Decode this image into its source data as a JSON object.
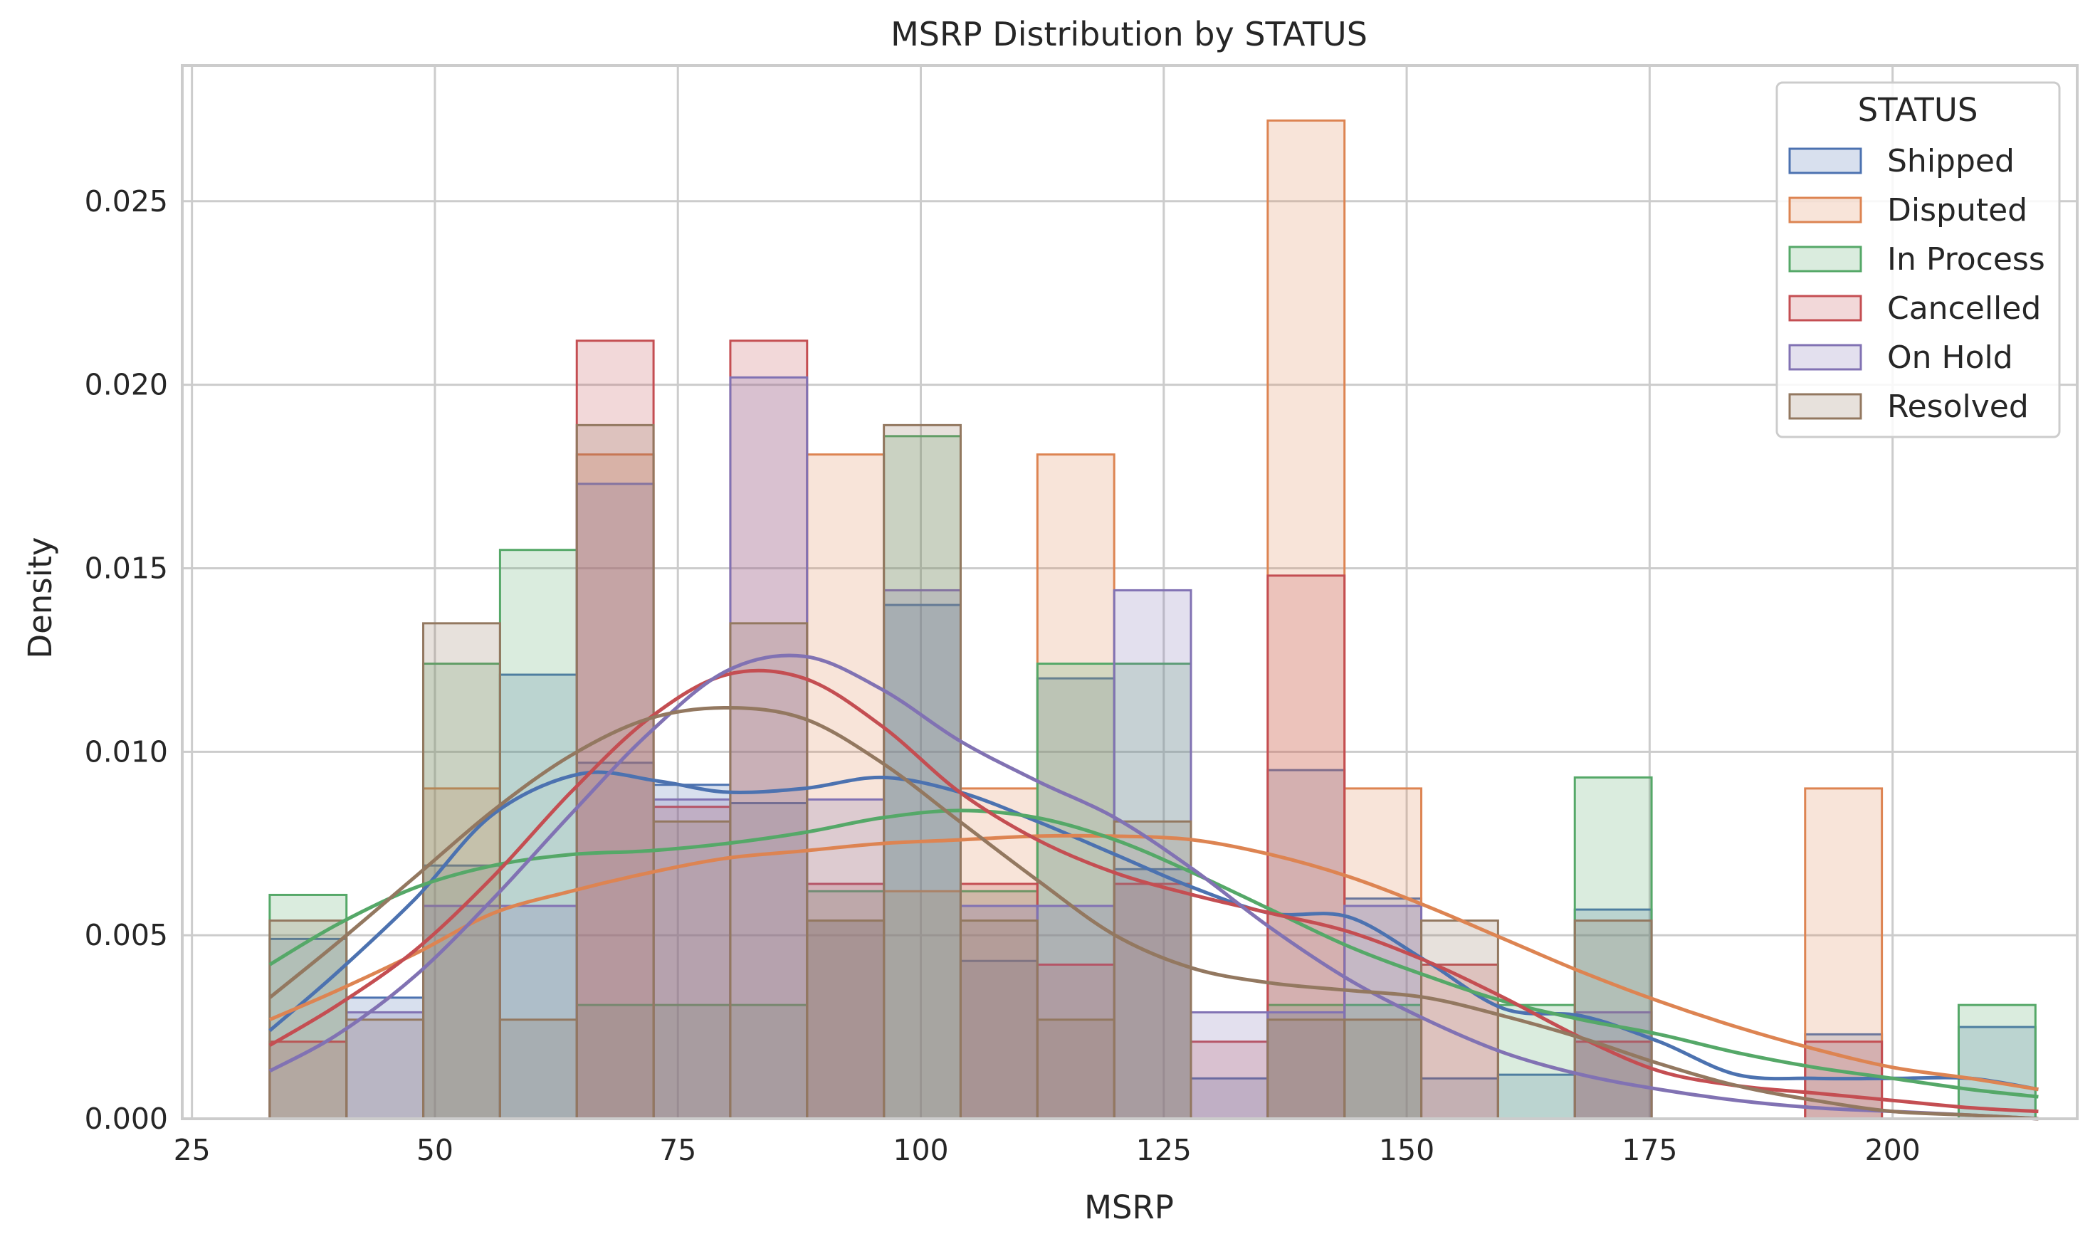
{
  "chart_data": {
    "type": "histogram",
    "title": "MSRP Distribution by STATUS",
    "xlabel": "MSRP",
    "ylabel": "Density",
    "xlim": [
      24,
      219
    ],
    "ylim": [
      0,
      0.0287
    ],
    "xticks": [
      25,
      50,
      75,
      100,
      125,
      150,
      175,
      200
    ],
    "yticks": [
      0.0,
      0.005,
      0.01,
      0.015,
      0.02,
      0.025
    ],
    "ytick_labels": [
      "0.000",
      "0.005",
      "0.010",
      "0.015",
      "0.020",
      "0.025"
    ],
    "grid": true,
    "bin_edges": [
      33,
      40.9,
      48.8,
      56.7,
      64.6,
      72.5,
      80.4,
      88.3,
      96.2,
      104.1,
      112.0,
      119.9,
      127.8,
      135.7,
      143.6,
      151.5,
      159.4,
      167.3,
      175.2,
      183.1,
      191.0,
      198.9,
      206.8,
      214.7
    ],
    "legend": {
      "title": "STATUS",
      "position": "upper right"
    },
    "series": [
      {
        "name": "Shipped",
        "color": "#4c72b0",
        "values": [
          0.0049,
          0.0033,
          0.0069,
          0.0121,
          0.0097,
          0.0091,
          0.0086,
          0.0054,
          0.014,
          0.0043,
          0.012,
          0.0068,
          0.0011,
          0.0095,
          0.006,
          0.0011,
          0.0012,
          0.0057,
          0,
          0,
          0.0023,
          0,
          0.0025
        ],
        "kde": [
          [
            33,
            0.0024
          ],
          [
            40,
            0.004
          ],
          [
            48,
            0.006
          ],
          [
            56,
            0.0083
          ],
          [
            65,
            0.0094
          ],
          [
            73,
            0.0092
          ],
          [
            80,
            0.0089
          ],
          [
            88,
            0.009
          ],
          [
            96,
            0.0093
          ],
          [
            104,
            0.0089
          ],
          [
            112,
            0.0081
          ],
          [
            120,
            0.0072
          ],
          [
            128,
            0.0063
          ],
          [
            136,
            0.0056
          ],
          [
            144,
            0.0055
          ],
          [
            152,
            0.0043
          ],
          [
            160,
            0.003
          ],
          [
            168,
            0.0028
          ],
          [
            176,
            0.0021
          ],
          [
            184,
            0.0012
          ],
          [
            192,
            0.0011
          ],
          [
            200,
            0.0011
          ],
          [
            208,
            0.0011
          ],
          [
            215,
            0.0008
          ]
        ]
      },
      {
        "name": "Disputed",
        "color": "#dd8452",
        "values": [
          0,
          0,
          0.009,
          0,
          0.0181,
          0,
          0,
          0.0181,
          0.0062,
          0.009,
          0.0181,
          0,
          0,
          0.0272,
          0.009,
          0,
          0,
          0,
          0,
          0,
          0.009,
          0,
          0
        ],
        "kde": [
          [
            33,
            0.0027
          ],
          [
            40,
            0.0035
          ],
          [
            48,
            0.0045
          ],
          [
            56,
            0.0056
          ],
          [
            64,
            0.0062
          ],
          [
            72,
            0.0067
          ],
          [
            80,
            0.0071
          ],
          [
            88,
            0.0073
          ],
          [
            96,
            0.0075
          ],
          [
            104,
            0.0076
          ],
          [
            112,
            0.0077
          ],
          [
            120,
            0.0077
          ],
          [
            128,
            0.0076
          ],
          [
            136,
            0.0072
          ],
          [
            144,
            0.0066
          ],
          [
            152,
            0.0058
          ],
          [
            160,
            0.0049
          ],
          [
            168,
            0.004
          ],
          [
            176,
            0.0032
          ],
          [
            184,
            0.0025
          ],
          [
            192,
            0.0019
          ],
          [
            200,
            0.0014
          ],
          [
            208,
            0.0011
          ],
          [
            215,
            0.0008
          ]
        ]
      },
      {
        "name": "In Process",
        "color": "#55a868",
        "values": [
          0.0061,
          0,
          0.0124,
          0.0155,
          0.0031,
          0.0031,
          0.0031,
          0.0062,
          0.0186,
          0.0062,
          0.0124,
          0.0124,
          0,
          0.0031,
          0.0031,
          0,
          0.0031,
          0.0093,
          0,
          0,
          0,
          0,
          0.0031
        ],
        "kde": [
          [
            33,
            0.0042
          ],
          [
            40,
            0.0053
          ],
          [
            48,
            0.0063
          ],
          [
            56,
            0.0069
          ],
          [
            64,
            0.0072
          ],
          [
            72,
            0.0073
          ],
          [
            80,
            0.0075
          ],
          [
            88,
            0.0078
          ],
          [
            96,
            0.0082
          ],
          [
            104,
            0.0084
          ],
          [
            112,
            0.0082
          ],
          [
            120,
            0.0076
          ],
          [
            128,
            0.0067
          ],
          [
            136,
            0.0057
          ],
          [
            144,
            0.0047
          ],
          [
            152,
            0.0039
          ],
          [
            160,
            0.0032
          ],
          [
            168,
            0.0027
          ],
          [
            176,
            0.0023
          ],
          [
            184,
            0.0018
          ],
          [
            192,
            0.0014
          ],
          [
            200,
            0.0011
          ],
          [
            208,
            0.0008
          ],
          [
            215,
            0.0006
          ]
        ]
      },
      {
        "name": "Cancelled",
        "color": "#c44e52",
        "values": [
          0.0021,
          0,
          0,
          0,
          0.0212,
          0.0085,
          0.0212,
          0.0064,
          0,
          0.0064,
          0.0042,
          0.0064,
          0.0021,
          0.0148,
          0,
          0.0042,
          0,
          0.0021,
          0,
          0,
          0.0021,
          0,
          0
        ],
        "kde": [
          [
            33,
            0.002
          ],
          [
            40,
            0.0031
          ],
          [
            48,
            0.0046
          ],
          [
            56,
            0.0066
          ],
          [
            64,
            0.0089
          ],
          [
            72,
            0.0109
          ],
          [
            80,
            0.0121
          ],
          [
            88,
            0.012
          ],
          [
            96,
            0.0107
          ],
          [
            104,
            0.0089
          ],
          [
            112,
            0.0076
          ],
          [
            120,
            0.0067
          ],
          [
            128,
            0.0061
          ],
          [
            136,
            0.0056
          ],
          [
            144,
            0.0051
          ],
          [
            152,
            0.0043
          ],
          [
            160,
            0.0033
          ],
          [
            168,
            0.0022
          ],
          [
            176,
            0.0013
          ],
          [
            184,
            0.0009
          ],
          [
            192,
            0.0007
          ],
          [
            200,
            0.0005
          ],
          [
            208,
            0.0003
          ],
          [
            215,
            0.0002
          ]
        ]
      },
      {
        "name": "On Hold",
        "color": "#8172b3",
        "values": [
          0,
          0.0029,
          0.0058,
          0.0058,
          0.0173,
          0.0087,
          0.0202,
          0.0087,
          0.0144,
          0.0058,
          0.0058,
          0.0144,
          0.0029,
          0.0029,
          0.0058,
          0,
          0,
          0.0029,
          0,
          0,
          0,
          0,
          0
        ],
        "kde": [
          [
            33,
            0.0013
          ],
          [
            40,
            0.0023
          ],
          [
            48,
            0.0039
          ],
          [
            56,
            0.006
          ],
          [
            64,
            0.0083
          ],
          [
            72,
            0.0105
          ],
          [
            80,
            0.0122
          ],
          [
            88,
            0.0126
          ],
          [
            96,
            0.0117
          ],
          [
            104,
            0.0103
          ],
          [
            112,
            0.0092
          ],
          [
            120,
            0.0082
          ],
          [
            128,
            0.0068
          ],
          [
            136,
            0.0052
          ],
          [
            144,
            0.0038
          ],
          [
            152,
            0.0027
          ],
          [
            160,
            0.0018
          ],
          [
            168,
            0.0012
          ],
          [
            176,
            0.0008
          ],
          [
            184,
            0.0005
          ],
          [
            192,
            0.0003
          ],
          [
            200,
            0.0002
          ],
          [
            208,
            0.0001
          ],
          [
            215,
            0
          ]
        ]
      },
      {
        "name": "Resolved",
        "color": "#937860",
        "values": [
          0.0054,
          0.0027,
          0.0135,
          0.0027,
          0.0189,
          0.0081,
          0.0135,
          0.0054,
          0.0189,
          0.0054,
          0.0027,
          0.0081,
          0,
          0.0027,
          0.0027,
          0.0054,
          0,
          0.0054,
          0,
          0,
          0,
          0,
          0
        ],
        "kde": [
          [
            33,
            0.0033
          ],
          [
            40,
            0.0048
          ],
          [
            48,
            0.0066
          ],
          [
            56,
            0.0084
          ],
          [
            64,
            0.0099
          ],
          [
            72,
            0.0109
          ],
          [
            80,
            0.0112
          ],
          [
            88,
            0.0109
          ],
          [
            96,
            0.0097
          ],
          [
            104,
            0.0081
          ],
          [
            112,
            0.0065
          ],
          [
            120,
            0.005
          ],
          [
            128,
            0.0041
          ],
          [
            136,
            0.0037
          ],
          [
            144,
            0.0035
          ],
          [
            152,
            0.0033
          ],
          [
            160,
            0.0028
          ],
          [
            168,
            0.0022
          ],
          [
            176,
            0.0015
          ],
          [
            184,
            0.0009
          ],
          [
            192,
            0.0005
          ],
          [
            200,
            0.0002
          ],
          [
            208,
            0.0001
          ],
          [
            215,
            0
          ]
        ]
      }
    ]
  }
}
